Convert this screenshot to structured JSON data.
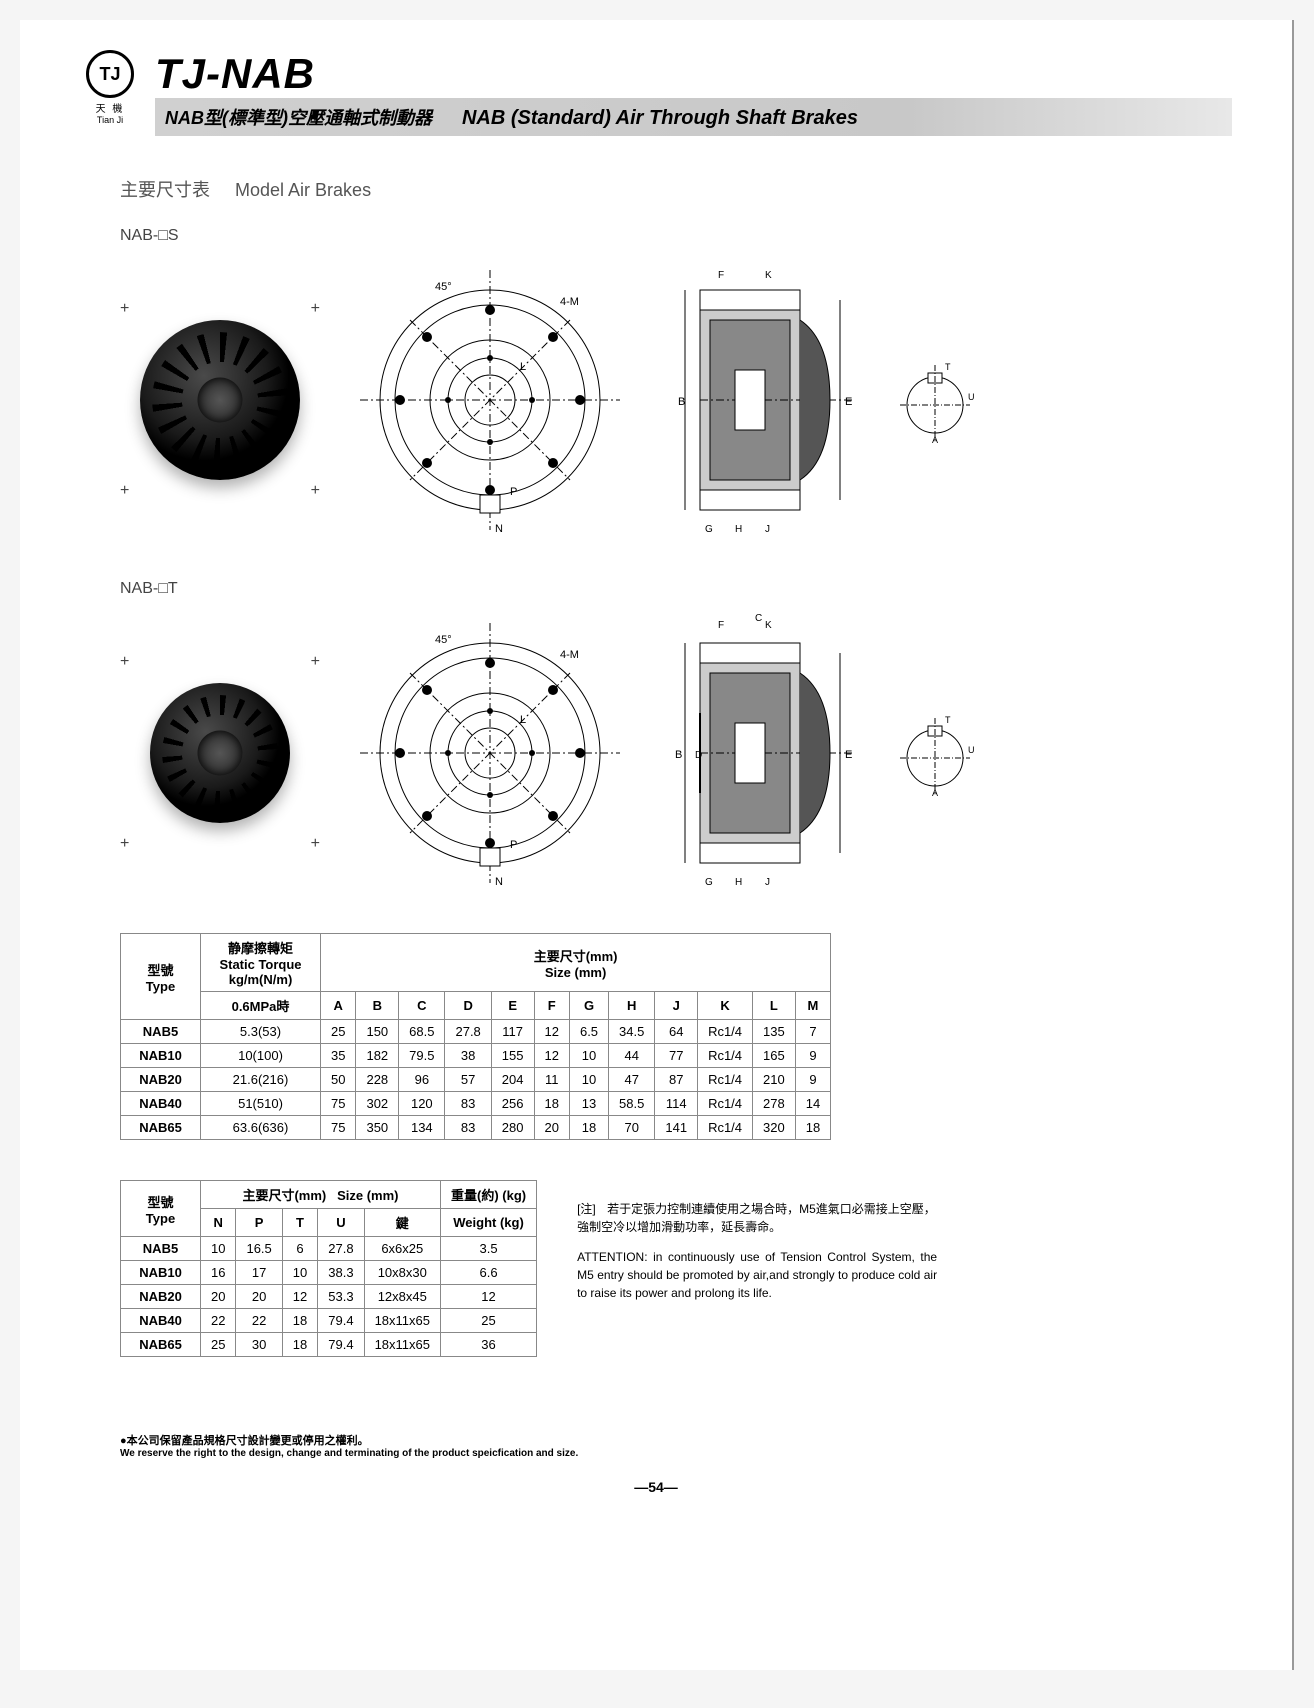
{
  "logo": {
    "text": "TJ",
    "reg": "®",
    "cn": "天 機",
    "en": "Tian Ji"
  },
  "title": "TJ-NAB",
  "subtitle_cn": "NAB型(標準型)空壓通軸式制動器",
  "subtitle_en": "NAB (Standard) Air Through Shaft Brakes",
  "section": {
    "cn": "主要尺寸表",
    "en": "Model Air Brakes"
  },
  "model_s": "NAB-□S",
  "model_t": "NAB-□T",
  "dim_labels": {
    "angle": "45°",
    "M": "4-M",
    "L": "L",
    "P": "P",
    "N": "N",
    "F": "F",
    "K": "K",
    "C": "C",
    "B": "B",
    "D": "D",
    "E": "E",
    "G": "G",
    "H": "H",
    "J": "J",
    "T": "T",
    "U": "U",
    "A": "A"
  },
  "table1": {
    "headers": {
      "type_cn": "型號",
      "type_en": "Type",
      "torque_cn": "静摩擦轉矩",
      "torque_en": "Static Torque",
      "torque_unit": "kg/m(N/m)",
      "torque_cond": "0.6MPa時",
      "size_cn": "主要尺寸(mm)",
      "size_en": "Size (mm)",
      "cols": [
        "A",
        "B",
        "C",
        "D",
        "E",
        "F",
        "G",
        "H",
        "J",
        "K",
        "L",
        "M"
      ]
    },
    "rows": [
      {
        "type": "NAB5",
        "torque": "5.3(53)",
        "v": [
          "25",
          "150",
          "68.5",
          "27.8",
          "117",
          "12",
          "6.5",
          "34.5",
          "64",
          "Rc1/4",
          "135",
          "7"
        ]
      },
      {
        "type": "NAB10",
        "torque": "10(100)",
        "v": [
          "35",
          "182",
          "79.5",
          "38",
          "155",
          "12",
          "10",
          "44",
          "77",
          "Rc1/4",
          "165",
          "9"
        ]
      },
      {
        "type": "NAB20",
        "torque": "21.6(216)",
        "v": [
          "50",
          "228",
          "96",
          "57",
          "204",
          "11",
          "10",
          "47",
          "87",
          "Rc1/4",
          "210",
          "9"
        ]
      },
      {
        "type": "NAB40",
        "torque": "51(510)",
        "v": [
          "75",
          "302",
          "120",
          "83",
          "256",
          "18",
          "13",
          "58.5",
          "114",
          "Rc1/4",
          "278",
          "14"
        ]
      },
      {
        "type": "NAB65",
        "torque": "63.6(636)",
        "v": [
          "75",
          "350",
          "134",
          "83",
          "280",
          "20",
          "18",
          "70",
          "141",
          "Rc1/4",
          "320",
          "18"
        ]
      }
    ]
  },
  "table2": {
    "headers": {
      "type_cn": "型號",
      "type_en": "Type",
      "size_cn": "主要尺寸(mm)",
      "size_en": "Size (mm)",
      "weight_cn": "重量(約) (kg)",
      "weight_en": "Weight (kg)",
      "cols": [
        "N",
        "P",
        "T",
        "U",
        "鍵"
      ]
    },
    "rows": [
      {
        "type": "NAB5",
        "v": [
          "10",
          "16.5",
          "6",
          "27.8",
          "6x6x25"
        ],
        "w": "3.5"
      },
      {
        "type": "NAB10",
        "v": [
          "16",
          "17",
          "10",
          "38.3",
          "10x8x30"
        ],
        "w": "6.6"
      },
      {
        "type": "NAB20",
        "v": [
          "20",
          "20",
          "12",
          "53.3",
          "12x8x45"
        ],
        "w": "12"
      },
      {
        "type": "NAB40",
        "v": [
          "22",
          "22",
          "18",
          "79.4",
          "18x11x65"
        ],
        "w": "25"
      },
      {
        "type": "NAB65",
        "v": [
          "25",
          "30",
          "18",
          "79.4",
          "18x11x65"
        ],
        "w": "36"
      }
    ]
  },
  "notes": {
    "label": "[注]",
    "cn": "若于定張力控制連續使用之場合時，M5進氣口必需接上空壓，強制空冷以增加滑動功率，延長壽命。",
    "en": "ATTENTION: in continuously use of Tension Control System, the M5 entry should be promoted by air,and strongly to produce cold air to raise its power and prolong its life."
  },
  "footer": {
    "cn": "●本公司保留產品規格尺寸設計變更或停用之權利。",
    "en": "We reserve the right to the design, change and terminating of the product speicfication and size."
  },
  "page_num": "—54—"
}
